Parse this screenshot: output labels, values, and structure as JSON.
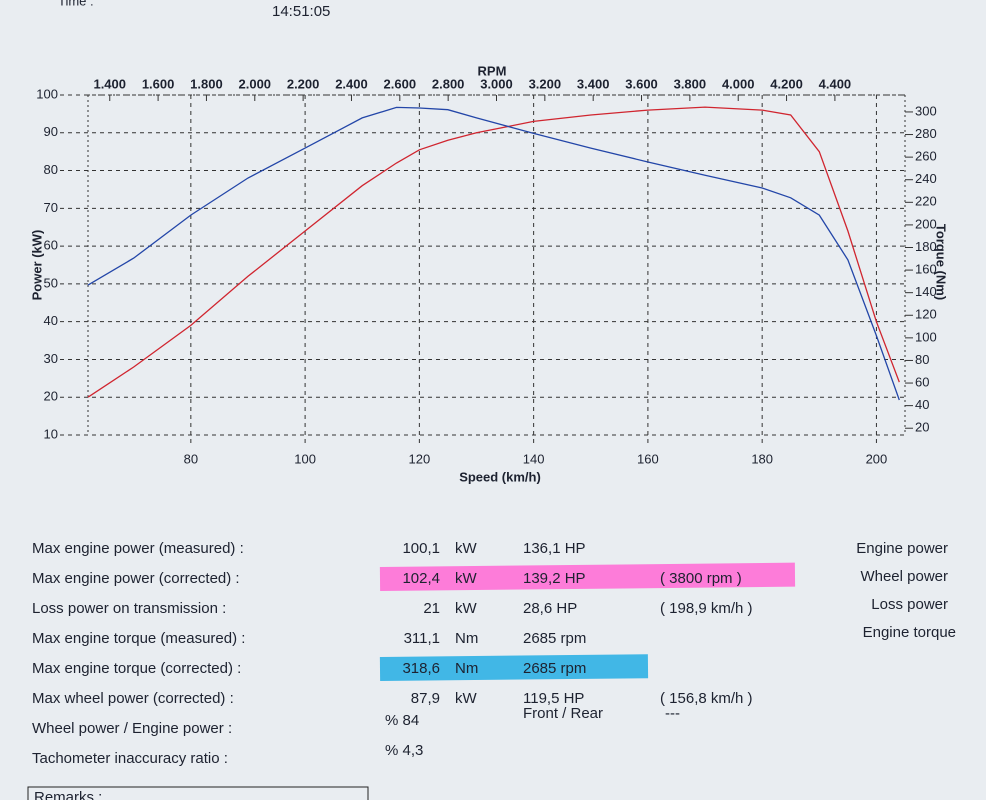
{
  "header": {
    "time_label": "Time :",
    "time": "14:51:05"
  },
  "chart_data": {
    "type": "line",
    "xlabel": "Speed (km/h)",
    "ylabel": "Power (kW)",
    "y2label": "Torque (Nm)",
    "x2label": "RPM",
    "x": [
      62,
      70,
      80,
      90,
      100,
      110,
      116,
      120,
      125,
      130,
      140,
      150,
      160,
      170,
      180,
      185,
      190,
      195,
      200,
      204
    ],
    "series": [
      {
        "name": "Engine power",
        "color": "#d0252f",
        "values": [
          20,
          28,
          39,
          52,
          64,
          76,
          82,
          85.5,
          88,
          90,
          93,
          94.7,
          96,
          96.8,
          96,
          94.7,
          85,
          64,
          40,
          24
        ]
      },
      {
        "name": "Engine torque",
        "color": "#2346a8",
        "axis": "y2",
        "values": [
          146.7,
          170.6,
          208.7,
          241.5,
          268,
          294.7,
          304,
          303.5,
          302,
          294.7,
          281,
          268,
          255.7,
          244,
          232.7,
          224,
          208.7,
          169,
          102,
          45
        ]
      }
    ],
    "xlim": [
      62,
      205
    ],
    "xticks": [
      80,
      100,
      120,
      140,
      160,
      180,
      200
    ],
    "x2lim": [
      1310,
      4690
    ],
    "x2ticks": [
      {
        "value": 1400,
        "label": "1.400"
      },
      {
        "value": 1600,
        "label": "1.600"
      },
      {
        "value": 1800,
        "label": "1.800"
      },
      {
        "value": 2000,
        "label": "2.000"
      },
      {
        "value": 2200,
        "label": "2.200"
      },
      {
        "value": 2400,
        "label": "2.400"
      },
      {
        "value": 2600,
        "label": "2.600"
      },
      {
        "value": 2800,
        "label": "2.800"
      },
      {
        "value": 3000,
        "label": "3.000"
      },
      {
        "value": 3200,
        "label": "3.200"
      },
      {
        "value": 3400,
        "label": "3.400"
      },
      {
        "value": 3600,
        "label": "3.600"
      },
      {
        "value": 3800,
        "label": "3.800"
      },
      {
        "value": 4000,
        "label": "4.000"
      },
      {
        "value": 4200,
        "label": "4.200"
      },
      {
        "value": 4400,
        "label": "4.400"
      }
    ],
    "ylim": [
      10,
      100
    ],
    "yticks": [
      10,
      20,
      30,
      40,
      50,
      60,
      70,
      80,
      90,
      100
    ],
    "y2lim": [
      14,
      315
    ],
    "y2ticks": [
      20,
      40,
      60,
      80,
      100,
      120,
      140,
      160,
      180,
      200,
      220,
      240,
      260,
      280,
      300
    ],
    "grid": true,
    "extra_legend": [
      {
        "name": "Wheel power",
        "color": "#1a7a3a"
      },
      {
        "name": "Loss power",
        "color": "#222222"
      }
    ]
  },
  "table": {
    "rows": [
      {
        "label": "Max engine power (measured) :",
        "value": "100,1",
        "unit": "kW",
        "hp": "136,1 HP"
      },
      {
        "label": "Max engine power (corrected) :",
        "value": "102,4",
        "unit": "kW",
        "hp": "139,2 HP",
        "note": "( 3800 rpm )",
        "highlight": "#ff6fd6"
      },
      {
        "label": "Loss power on transmission :",
        "value": "21",
        "unit": "kW",
        "hp": "28,6 HP",
        "note": "( 198,9 km/h )"
      },
      {
        "label": "Max engine torque (measured) :",
        "value": "311,1",
        "unit": "Nm",
        "hp": "2685 rpm"
      },
      {
        "label": "Max engine torque (corrected) :",
        "value": "318,6",
        "unit": "Nm",
        "hp": "2685 rpm",
        "highlight": "#2fb0e4"
      },
      {
        "label": "Max wheel power (corrected) :",
        "value": "87,9",
        "unit": "kW",
        "hp": "119,5 HP",
        "note": "( 156,8 km/h )"
      },
      {
        "label": "Wheel power / Engine power :",
        "value": "% 84",
        "hp": "Front / Rear",
        "note": "---"
      },
      {
        "label": "Tachometer inaccuracy ratio :",
        "value": "% 4,3"
      }
    ]
  },
  "footer": {
    "remarks": "Remarks :"
  }
}
